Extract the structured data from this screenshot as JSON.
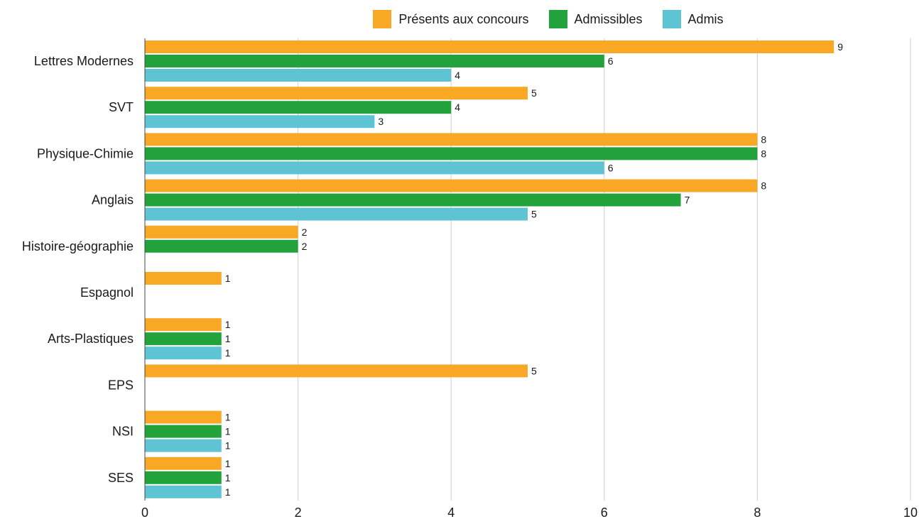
{
  "chart_data": {
    "type": "bar",
    "orientation": "horizontal",
    "categories": [
      "Lettres Modernes",
      "SVT",
      "Physique-Chimie",
      "Anglais",
      "Histoire-géographie",
      "Espagnol",
      "Arts-Plastiques",
      "EPS",
      "NSI",
      "SES"
    ],
    "series": [
      {
        "name": "Présents aux concours",
        "color": "#f9a825",
        "values": [
          9,
          5,
          8,
          8,
          2,
          1,
          1,
          5,
          1,
          1
        ]
      },
      {
        "name": "Admissibles",
        "color": "#22a23b",
        "values": [
          6,
          4,
          8,
          7,
          2,
          null,
          1,
          null,
          1,
          1
        ]
      },
      {
        "name": "Admis",
        "color": "#5ec4d3",
        "values": [
          4,
          3,
          6,
          5,
          null,
          null,
          1,
          null,
          1,
          1
        ]
      }
    ],
    "xlim": [
      0,
      10
    ],
    "xticks": [
      0,
      2,
      4,
      6,
      8,
      10
    ],
    "grid": "vertical",
    "legend": "top-center",
    "data_labels": true
  }
}
